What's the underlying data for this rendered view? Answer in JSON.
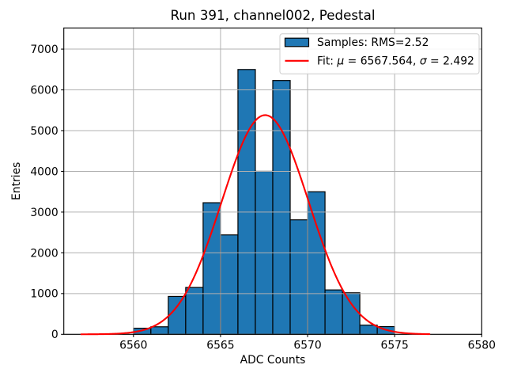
{
  "chart_data": {
    "type": "histogram",
    "title": "Run 391, channel002, Pedestal",
    "xlabel": "ADC Counts",
    "ylabel": "Entries",
    "bins": {
      "start": 6560,
      "width": 1
    },
    "counts": [
      150,
      185,
      930,
      1150,
      3230,
      2440,
      6500,
      4000,
      6230,
      2810,
      3500,
      1090,
      1020,
      225,
      190
    ],
    "xlim": [
      6556,
      6580
    ],
    "ylim": [
      0,
      7520
    ],
    "xticks": [
      6560,
      6565,
      6570,
      6575,
      6580
    ],
    "yticks": [
      0,
      1000,
      2000,
      3000,
      4000,
      5000,
      6000,
      7000
    ],
    "grid": true,
    "colors": {
      "bar_fill": "#1f77b4",
      "bar_edge": "#000000",
      "fit_line": "#ff0000",
      "grid_line": "#b0b0b0"
    },
    "fit_curve": {
      "shape": "gaussian",
      "mu": 6567.564,
      "sigma": 2.492,
      "peak": 5380,
      "x_start": 6557,
      "x_end": 6577
    },
    "legend": {
      "entries": [
        {
          "handle": "patch",
          "label": "Samples: RMS=2.52"
        },
        {
          "handle": "line",
          "label": "Fit: μ = 6567.564, σ = 2.492"
        }
      ]
    }
  }
}
